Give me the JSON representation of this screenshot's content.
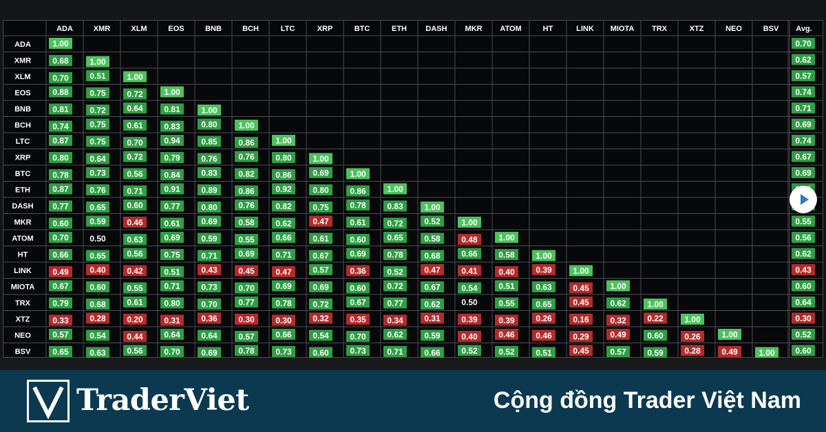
{
  "chart_data": {
    "type": "heatmap",
    "title": "",
    "columns": [
      "ADA",
      "XMR",
      "XLM",
      "EOS",
      "BNB",
      "BCH",
      "LTC",
      "XRP",
      "BTC",
      "ETH",
      "DASH",
      "MKR",
      "ATOM",
      "HT",
      "LINK",
      "MIOTA",
      "TRX",
      "XTZ",
      "NEO",
      "BSV"
    ],
    "avg_header": "Avg.",
    "rows": [
      {
        "label": "ADA",
        "values": [
          1.0
        ],
        "avg": 0.7
      },
      {
        "label": "XMR",
        "values": [
          0.68,
          1.0
        ],
        "avg": 0.62
      },
      {
        "label": "XLM",
        "values": [
          0.7,
          0.51,
          1.0
        ],
        "avg": 0.57
      },
      {
        "label": "EOS",
        "values": [
          0.88,
          0.75,
          0.72,
          1.0
        ],
        "avg": 0.74
      },
      {
        "label": "BNB",
        "values": [
          0.81,
          0.72,
          0.64,
          0.81,
          1.0
        ],
        "avg": 0.71
      },
      {
        "label": "BCH",
        "values": [
          0.74,
          0.75,
          0.61,
          0.83,
          0.8,
          1.0
        ],
        "avg": 0.69
      },
      {
        "label": "LTC",
        "values": [
          0.87,
          0.75,
          0.7,
          0.94,
          0.85,
          0.86,
          1.0
        ],
        "avg": 0.74
      },
      {
        "label": "XRP",
        "values": [
          0.8,
          0.64,
          0.72,
          0.79,
          0.76,
          0.76,
          0.8,
          1.0
        ],
        "avg": 0.67
      },
      {
        "label": "BTC",
        "values": [
          0.78,
          0.73,
          0.56,
          0.84,
          0.83,
          0.82,
          0.86,
          0.69,
          1.0
        ],
        "avg": 0.69
      },
      {
        "label": "ETH",
        "values": [
          0.87,
          0.76,
          0.71,
          0.91,
          0.89,
          0.86,
          0.92,
          0.8,
          0.86,
          1.0
        ],
        "avg": 0.75
      },
      {
        "label": "DASH",
        "values": [
          0.77,
          0.65,
          0.6,
          0.77,
          0.8,
          0.76,
          0.82,
          0.75,
          0.78,
          0.83,
          1.0
        ],
        "avg": 0.69
      },
      {
        "label": "MKR",
        "values": [
          0.6,
          0.59,
          0.46,
          0.61,
          0.69,
          0.58,
          0.62,
          0.47,
          0.61,
          0.72,
          0.52,
          1.0
        ],
        "avg": 0.55
      },
      {
        "label": "ATOM",
        "values": [
          0.7,
          0.5,
          0.63,
          0.69,
          0.59,
          0.55,
          0.66,
          0.61,
          0.6,
          0.65,
          0.58,
          0.48,
          1.0
        ],
        "avg": 0.56
      },
      {
        "label": "HT",
        "values": [
          0.66,
          0.65,
          0.56,
          0.75,
          0.71,
          0.69,
          0.71,
          0.67,
          0.69,
          0.78,
          0.68,
          0.66,
          0.58,
          1.0
        ],
        "avg": 0.62
      },
      {
        "label": "LINK",
        "values": [
          0.49,
          0.4,
          0.42,
          0.51,
          0.43,
          0.45,
          0.47,
          0.57,
          0.36,
          0.52,
          0.47,
          0.41,
          0.4,
          0.39,
          1.0
        ],
        "avg": 0.43
      },
      {
        "label": "MIOTA",
        "values": [
          0.67,
          0.6,
          0.55,
          0.71,
          0.73,
          0.7,
          0.69,
          0.69,
          0.6,
          0.72,
          0.67,
          0.54,
          0.51,
          0.63,
          0.45,
          1.0
        ],
        "avg": 0.6
      },
      {
        "label": "TRX",
        "values": [
          0.79,
          0.68,
          0.61,
          0.8,
          0.7,
          0.77,
          0.78,
          0.72,
          0.67,
          0.77,
          0.62,
          0.5,
          0.55,
          0.65,
          0.45,
          0.62,
          1.0
        ],
        "avg": 0.64
      },
      {
        "label": "XTZ",
        "values": [
          0.33,
          0.28,
          0.2,
          0.31,
          0.36,
          0.3,
          0.3,
          0.32,
          0.35,
          0.34,
          0.31,
          0.39,
          0.39,
          0.26,
          0.16,
          0.32,
          0.22,
          1.0
        ],
        "avg": 0.3
      },
      {
        "label": "NEO",
        "values": [
          0.57,
          0.54,
          0.44,
          0.64,
          0.64,
          0.57,
          0.66,
          0.54,
          0.7,
          0.62,
          0.59,
          0.4,
          0.46,
          0.46,
          0.29,
          0.49,
          0.6,
          0.26,
          1.0
        ],
        "avg": 0.52
      },
      {
        "label": "BSV",
        "values": [
          0.65,
          0.63,
          0.56,
          0.7,
          0.69,
          0.78,
          0.73,
          0.6,
          0.73,
          0.71,
          0.66,
          0.52,
          0.52,
          0.51,
          0.45,
          0.57,
          0.59,
          0.28,
          0.49,
          1.0
        ],
        "avg": 0.6
      }
    ],
    "color_scale": {
      "high": "#2f9e44",
      "high_light": "#4cc35c",
      "neutral_text": "#ffffff",
      "low": "#b32b2b",
      "low_dark": "#8f2323"
    }
  },
  "footer": {
    "brand": "TraderViet",
    "brand_initial": "V",
    "tagline": "Cộng đồng Trader Việt Nam"
  },
  "colors": {
    "footer_bg": "#0b3950",
    "matrix_bg": "#07080a",
    "grid": "#4a4d52"
  },
  "icons": {
    "play": "play-icon"
  }
}
